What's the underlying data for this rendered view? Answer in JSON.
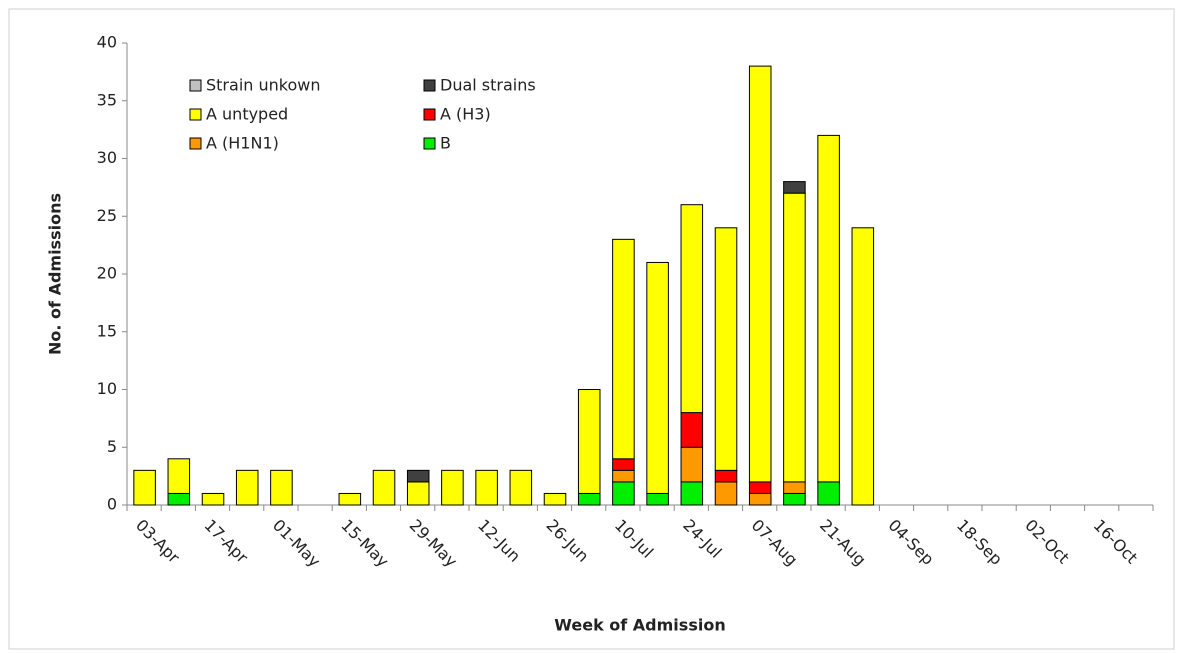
{
  "chart_data": {
    "type": "stacked-bar",
    "x_label": "Week of Admission",
    "y_label": "No. of Admissions",
    "categories": [
      "03-Apr",
      null,
      "17-Apr",
      null,
      "01-May",
      null,
      "15-May",
      null,
      "29-May",
      null,
      "12-Jun",
      null,
      "26-Jun",
      null,
      "10-Jul",
      null,
      "24-Jul",
      null,
      "07-Aug",
      null,
      "21-Aug",
      null,
      "04-Sep",
      null,
      "18-Sep",
      null,
      "02-Oct",
      null,
      "16-Oct",
      null
    ],
    "series": [
      {
        "name": "Strain unkown",
        "color": "#c0c0c0",
        "values": [
          0,
          0,
          0,
          0,
          0,
          0,
          0,
          0,
          0,
          0,
          0,
          0,
          0,
          0,
          0,
          0,
          0,
          0,
          0,
          0,
          0,
          0,
          0,
          0,
          0,
          0,
          0,
          0,
          0,
          0
        ]
      },
      {
        "name": "Dual strains",
        "color": "#404040",
        "values": [
          0,
          0,
          0,
          0,
          0,
          0,
          0,
          0,
          1,
          0,
          0,
          0,
          0,
          0,
          0,
          0,
          0,
          0,
          0,
          1,
          0,
          0,
          0,
          0,
          0,
          0,
          0,
          0,
          0,
          0
        ]
      },
      {
        "name": "A untyped",
        "color": "#ffff00",
        "values": [
          3,
          3,
          1,
          3,
          3,
          0,
          1,
          3,
          2,
          3,
          3,
          3,
          1,
          9,
          19,
          20,
          18,
          21,
          36,
          25,
          30,
          24,
          0,
          0,
          0,
          0,
          0,
          0,
          0,
          0
        ]
      },
      {
        "name": "A (H3)",
        "color": "#ff0000",
        "values": [
          0,
          0,
          0,
          0,
          0,
          0,
          0,
          0,
          0,
          0,
          0,
          0,
          0,
          0,
          1,
          0,
          3,
          1,
          1,
          0,
          0,
          0,
          0,
          0,
          0,
          0,
          0,
          0,
          0,
          0
        ]
      },
      {
        "name": "A (H1N1)",
        "color": "#ff9900",
        "values": [
          0,
          0,
          0,
          0,
          0,
          0,
          0,
          0,
          0,
          0,
          0,
          0,
          0,
          0,
          1,
          0,
          3,
          2,
          1,
          1,
          0,
          0,
          0,
          0,
          0,
          0,
          0,
          0,
          0,
          0
        ]
      },
      {
        "name": "B",
        "color": "#00ee00",
        "values": [
          0,
          1,
          0,
          0,
          0,
          0,
          0,
          0,
          0,
          0,
          0,
          0,
          0,
          1,
          2,
          1,
          2,
          0,
          0,
          1,
          2,
          0,
          0,
          0,
          0,
          0,
          0,
          0,
          0,
          0
        ]
      }
    ],
    "ylim": [
      0,
      40
    ],
    "yticks": [
      0,
      5,
      10,
      15,
      20,
      25,
      30,
      35,
      40
    ]
  }
}
